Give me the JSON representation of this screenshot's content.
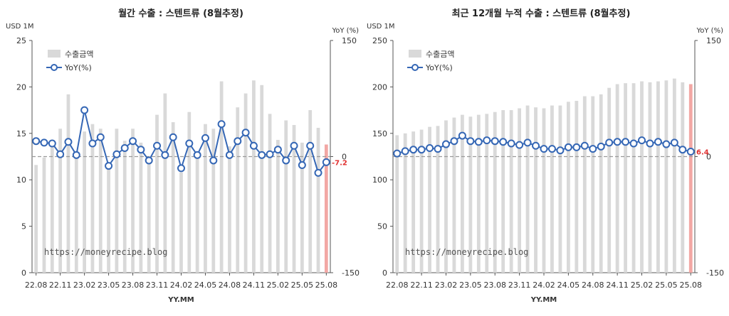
{
  "colors": {
    "bar": "#d9d9d9",
    "bar_last": "#f2a7a4",
    "line": "#3567b5",
    "marker_fill": "#ffffff",
    "zero_line": "#9a9a9a",
    "last_label": "#e03030"
  },
  "chart_data": [
    {
      "type": "bar+line",
      "title": "월간 수출 : 스텐트류 (8월추정)",
      "left_unit": "USD 1M",
      "right_unit": "YoY (%)",
      "xlabel": "YY.MM",
      "ylim_left": [
        0,
        25
      ],
      "yticks_left": [
        0,
        5,
        10,
        15,
        20,
        25
      ],
      "ylim_right": [
        -150,
        150
      ],
      "yticks_right": [
        -150,
        0,
        150
      ],
      "xtick_labels": [
        "22.08",
        "22.11",
        "23.02",
        "23.05",
        "23.08",
        "23.11",
        "24.02",
        "24.05",
        "24.08",
        "24.11",
        "25.02",
        "25.05",
        "25.08"
      ],
      "legend_bar": "수출금액",
      "legend_line": "YoY(%)",
      "legend_position": "top-left",
      "watermark": "https://moneyrecipe.blog",
      "categories": [
        "22.08",
        "22.09",
        "22.10",
        "22.11",
        "22.12",
        "23.01",
        "23.02",
        "23.03",
        "23.04",
        "23.05",
        "23.06",
        "23.07",
        "23.08",
        "23.09",
        "23.10",
        "23.11",
        "23.12",
        "24.01",
        "24.02",
        "24.03",
        "24.04",
        "24.05",
        "24.06",
        "24.07",
        "24.08",
        "24.09",
        "24.10",
        "24.11",
        "24.12",
        "25.01",
        "25.02",
        "25.03",
        "25.04",
        "25.05",
        "25.06",
        "25.07",
        "25.08"
      ],
      "bars": [
        11.6,
        12.4,
        13.8,
        15.5,
        19.2,
        13.0,
        15.2,
        16.0,
        15.5,
        11.6,
        15.5,
        14.2,
        15.5,
        14.0,
        12.1,
        17.0,
        19.3,
        16.2,
        10.8,
        17.3,
        13.0,
        16.0,
        15.5,
        20.6,
        13.6,
        17.8,
        19.3,
        20.7,
        20.2,
        17.1,
        14.3,
        16.4,
        15.9,
        14.0,
        17.5,
        15.6,
        13.8
      ],
      "yoy": [
        20,
        18,
        17,
        3,
        19,
        2,
        60,
        17,
        25,
        -12,
        3,
        11,
        20,
        9,
        -5,
        14,
        2,
        25,
        -15,
        17,
        2,
        24,
        -5,
        42,
        2,
        20,
        31,
        14,
        2,
        3,
        9,
        -5,
        14,
        -11,
        14,
        -21,
        -7.2
      ],
      "last_label": "-7.2"
    },
    {
      "type": "bar+line",
      "title": "최근 12개월 누적 수출 : 스텐트류 (8월추정)",
      "left_unit": "USD 1M",
      "right_unit": "YoY (%)",
      "xlabel": "YY.MM",
      "ylim_left": [
        0,
        250
      ],
      "yticks_left": [
        0,
        50,
        100,
        150,
        200,
        250
      ],
      "ylim_right": [
        -150,
        150
      ],
      "yticks_right": [
        -150,
        0,
        150
      ],
      "xtick_labels": [
        "22.08",
        "22.11",
        "23.02",
        "23.05",
        "23.08",
        "23.11",
        "24.02",
        "24.05",
        "24.08",
        "24.11",
        "25.02",
        "25.05",
        "25.08"
      ],
      "legend_bar": "수출금액",
      "legend_line": "YoY(%)",
      "legend_position": "top-left",
      "watermark": "https://moneyrecipe.blog",
      "categories": [
        "22.08",
        "22.09",
        "22.10",
        "22.11",
        "22.12",
        "23.01",
        "23.02",
        "23.03",
        "23.04",
        "23.05",
        "23.06",
        "23.07",
        "23.08",
        "23.09",
        "23.10",
        "23.11",
        "23.12",
        "24.01",
        "24.02",
        "24.03",
        "24.04",
        "24.05",
        "24.06",
        "24.07",
        "24.08",
        "24.09",
        "24.10",
        "24.11",
        "24.12",
        "25.01",
        "25.02",
        "25.03",
        "25.04",
        "25.05",
        "25.06",
        "25.07",
        "25.08"
      ],
      "bars": [
        148,
        150,
        152,
        154,
        157,
        158,
        164,
        167,
        170,
        168,
        170,
        171,
        173,
        175,
        175,
        177,
        180,
        178,
        177,
        180,
        180,
        184,
        185,
        190,
        190,
        192,
        199,
        203,
        204,
        204,
        206,
        205,
        206,
        207,
        209,
        205,
        203
      ],
      "yoy": [
        4,
        7,
        9,
        9,
        11,
        10,
        16,
        20,
        27,
        20,
        19,
        21,
        20,
        19,
        17,
        15,
        18,
        14,
        10,
        10,
        8,
        12,
        12,
        14,
        10,
        13,
        18,
        19,
        19,
        17,
        21,
        17,
        19,
        16,
        18,
        9,
        6.4
      ],
      "last_label": "6.4"
    }
  ]
}
